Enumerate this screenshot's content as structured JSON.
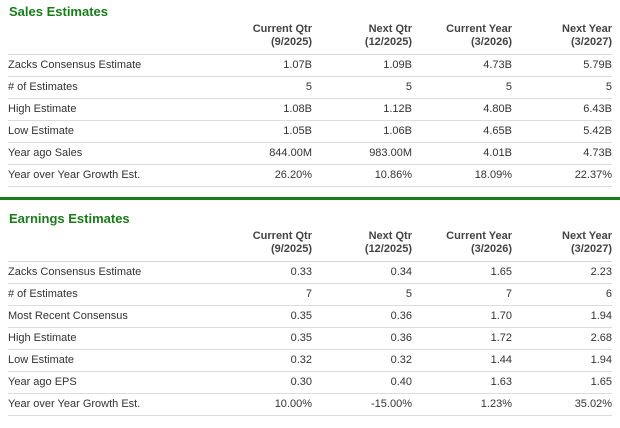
{
  "colors": {
    "title_green": "#187c19",
    "divider_green": "#187c19",
    "row_border": "#dcdcdc",
    "header_text": "#444444",
    "body_text": "#333333"
  },
  "sections": [
    {
      "title": "Sales Estimates",
      "columns": [
        {
          "label": "Current Qtr",
          "period": "(9/2025)"
        },
        {
          "label": "Next Qtr",
          "period": "(12/2025)"
        },
        {
          "label": "Current Year",
          "period": "(3/2026)"
        },
        {
          "label": "Next Year",
          "period": "(3/2027)"
        }
      ],
      "rows": [
        {
          "label": "Zacks Consensus Estimate",
          "values": [
            "1.07B",
            "1.09B",
            "4.73B",
            "5.79B"
          ]
        },
        {
          "label": "# of Estimates",
          "values": [
            "5",
            "5",
            "5",
            "5"
          ]
        },
        {
          "label": "High Estimate",
          "values": [
            "1.08B",
            "1.12B",
            "4.80B",
            "6.43B"
          ]
        },
        {
          "label": "Low Estimate",
          "values": [
            "1.05B",
            "1.06B",
            "4.65B",
            "5.42B"
          ]
        },
        {
          "label": "Year ago Sales",
          "values": [
            "844.00M",
            "983.00M",
            "4.01B",
            "4.73B"
          ]
        },
        {
          "label": "Year over Year Growth Est.",
          "values": [
            "26.20%",
            "10.86%",
            "18.09%",
            "22.37%"
          ]
        }
      ]
    },
    {
      "title": "Earnings Estimates",
      "columns": [
        {
          "label": "Current Qtr",
          "period": "(9/2025)"
        },
        {
          "label": "Next Qtr",
          "period": "(12/2025)"
        },
        {
          "label": "Current Year",
          "period": "(3/2026)"
        },
        {
          "label": "Next Year",
          "period": "(3/2027)"
        }
      ],
      "rows": [
        {
          "label": "Zacks Consensus Estimate",
          "values": [
            "0.33",
            "0.34",
            "1.65",
            "2.23"
          ]
        },
        {
          "label": "# of Estimates",
          "values": [
            "7",
            "5",
            "7",
            "6"
          ]
        },
        {
          "label": "Most Recent Consensus",
          "values": [
            "0.35",
            "0.36",
            "1.70",
            "1.94"
          ]
        },
        {
          "label": "High Estimate",
          "values": [
            "0.35",
            "0.36",
            "1.72",
            "2.68"
          ]
        },
        {
          "label": "Low Estimate",
          "values": [
            "0.32",
            "0.32",
            "1.44",
            "1.94"
          ]
        },
        {
          "label": "Year ago EPS",
          "values": [
            "0.30",
            "0.40",
            "1.63",
            "1.65"
          ]
        },
        {
          "label": "Year over Year Growth Est.",
          "values": [
            "10.00%",
            "-15.00%",
            "1.23%",
            "35.02%"
          ]
        }
      ]
    }
  ]
}
